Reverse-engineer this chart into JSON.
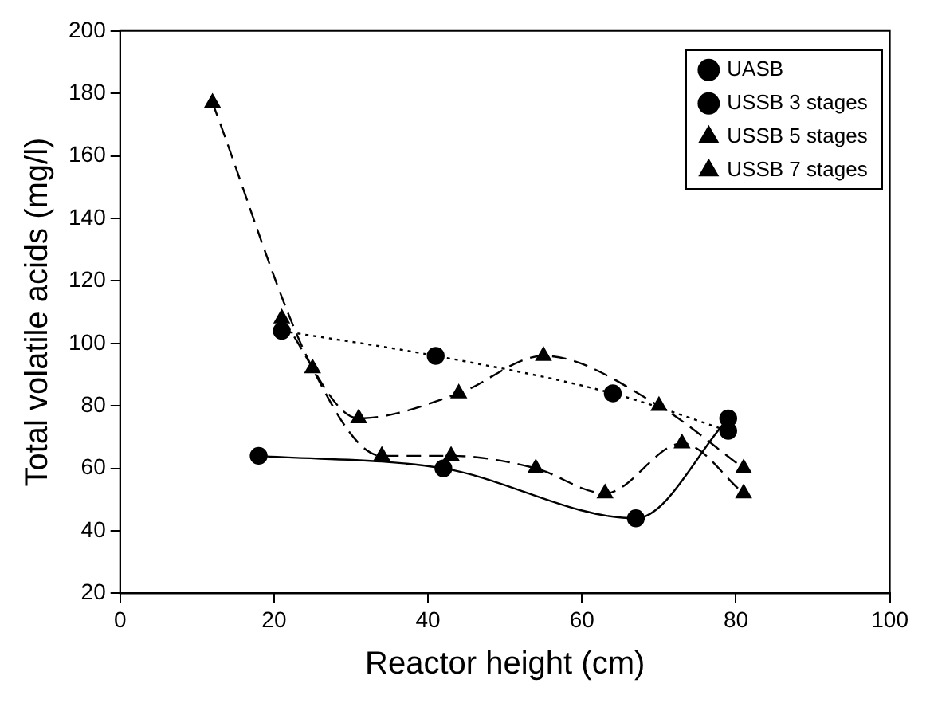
{
  "chart_data": {
    "type": "line",
    "xlabel": "Reactor height (cm)",
    "ylabel": "Total volatile acids (mg/l)",
    "xlim": [
      0,
      100
    ],
    "xticks": [
      0,
      20,
      40,
      60,
      80,
      100
    ],
    "ylim": [
      20,
      200
    ],
    "yticks": [
      20,
      40,
      60,
      80,
      100,
      120,
      140,
      160,
      180,
      200
    ],
    "grid": false,
    "legend": "top right",
    "series": [
      {
        "name": "UASB",
        "color": "#000000",
        "marker": "circle",
        "line_style": "solid",
        "x": [
          18,
          42,
          67,
          79
        ],
        "values": [
          64,
          60,
          44,
          76
        ]
      },
      {
        "name": "USSB 3 stages",
        "color": "#000000",
        "marker": "circle",
        "line_style": "dotted",
        "x": [
          21,
          41,
          64,
          79
        ],
        "values": [
          104,
          96,
          84,
          72
        ]
      },
      {
        "name": "USSB 5 stages",
        "color": "#000000",
        "marker": "triangle",
        "line_style": "dashed",
        "x": [
          21,
          31,
          44,
          55,
          70,
          81
        ],
        "values": [
          108,
          76,
          84,
          96,
          80,
          60
        ]
      },
      {
        "name": "USSB 7 stages",
        "color": "#000000",
        "marker": "triangle",
        "line_style": "dashed",
        "x": [
          12,
          25,
          34,
          43,
          54,
          63,
          73,
          81
        ],
        "values": [
          177,
          92,
          64,
          64,
          60,
          52,
          68,
          52
        ]
      }
    ]
  }
}
